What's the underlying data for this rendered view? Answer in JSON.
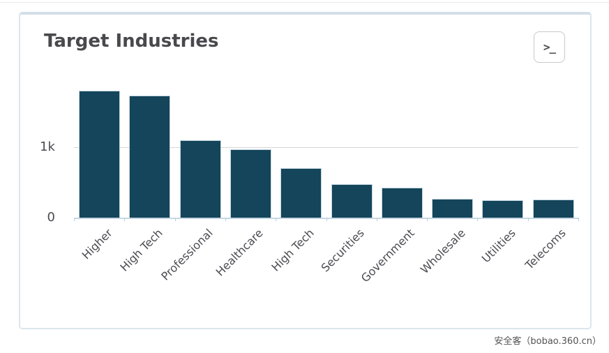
{
  "panel": {
    "title": "Target Industries",
    "toolbar": {
      "terminal_button_glyph": ">_"
    }
  },
  "chart_data": {
    "type": "bar",
    "title": "Target Industries",
    "categories": [
      "Higher",
      "High Tech",
      "Professional",
      "Healthcare",
      "High Tech",
      "Securities",
      "Government",
      "Wholesale",
      "Utilities",
      "Telecoms"
    ],
    "values": [
      1800,
      1730,
      1100,
      970,
      700,
      475,
      425,
      265,
      245,
      255
    ],
    "xlabel": "",
    "ylabel": "",
    "ylim": [
      0,
      1850
    ],
    "yticks": [
      {
        "value": 0,
        "label": "0"
      },
      {
        "value": 1000,
        "label": "1k"
      }
    ],
    "grid": "horizontal gridline at 1k only",
    "legend_position": "none",
    "colors": {
      "bar_fill": "#14455a",
      "bar_stroke": "#c3d4e0",
      "axis_line": "#c6d7e3",
      "gridline": "#d6d6d6",
      "tick_label": "#4a4a52",
      "title": "#49494d",
      "panel_border": "#d3dfe8"
    }
  },
  "watermark": {
    "text": "安全客（bobao.360.cn）"
  }
}
